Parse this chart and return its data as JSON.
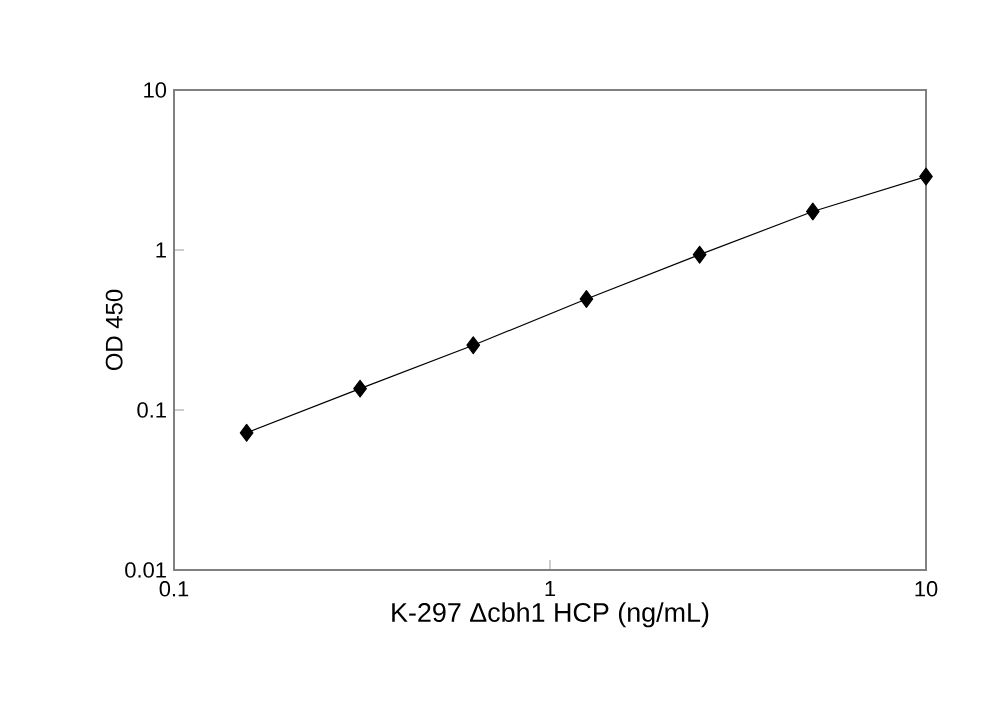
{
  "chart_data": {
    "type": "line",
    "xlabel": "K-297 Δcbh1 HCP (ng/mL)",
    "ylabel": "OD 450",
    "x": [
      0.156,
      0.3125,
      0.625,
      1.25,
      2.5,
      5,
      10
    ],
    "series": [
      {
        "color": "#000000",
        "values": [
          0.072,
          0.136,
          0.254,
          0.494,
          0.935,
          1.74,
          2.88
        ]
      }
    ],
    "marker": "diamond",
    "line_style": "solid",
    "log": "xy",
    "xlim": [
      0.1,
      10
    ],
    "ylim": [
      0.01,
      10
    ],
    "xticks": [
      0.1,
      1,
      10
    ],
    "yticks": [
      0.01,
      0.1,
      1,
      10
    ]
  }
}
